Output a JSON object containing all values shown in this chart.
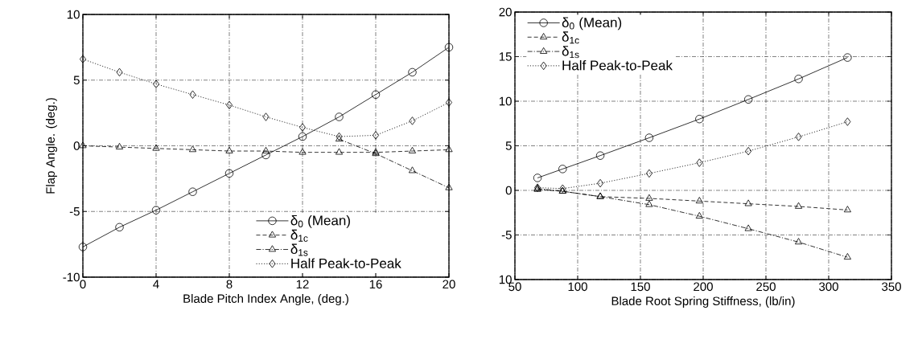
{
  "chart_data": [
    {
      "type": "line",
      "xlabel": "Blade Pitch Index Angle, (deg.)",
      "ylabel": "Flap Angle. (deg.)",
      "x": [
        0,
        2,
        4,
        6,
        8,
        10,
        12,
        14,
        16,
        18,
        20
      ],
      "xlim": [
        0,
        20
      ],
      "xticks": [
        0,
        4,
        8,
        12,
        16,
        20
      ],
      "ylim": [
        -10,
        10
      ],
      "yticks": [
        -10,
        -5,
        0,
        5,
        10
      ],
      "grid": true,
      "legend": "bottom right",
      "series": [
        {
          "name": "δ$_{0}$ (Mean)",
          "color": "#000000",
          "marker": "circle",
          "line_style": "solid",
          "values": [
            -7.7,
            -6.2,
            -4.9,
            -3.5,
            -2.1,
            -0.7,
            0.7,
            2.2,
            3.9,
            5.6,
            7.5
          ]
        },
        {
          "name": "δ$_{1c}$",
          "color": "#000000",
          "marker": "triangle",
          "line_style": "dashed",
          "values": [
            0,
            -0.1,
            -0.2,
            -0.3,
            -0.4,
            -0.4,
            -0.5,
            -0.5,
            -0.5,
            -0.4,
            -0.3
          ]
        },
        {
          "name": "δ$_{1s}$",
          "color": "#000000",
          "marker": "triangle",
          "line_style": "dashdot",
          "values": [
            null,
            null,
            null,
            null,
            null,
            null,
            null,
            0.5,
            -0.6,
            -1.9,
            -3.2
          ]
        },
        {
          "name": "Half Peak-to-Peak",
          "color": "#000000",
          "marker": "diamond",
          "line_style": "dotted",
          "values": [
            6.6,
            5.6,
            4.7,
            3.9,
            3.1,
            2.2,
            1.4,
            0.7,
            0.8,
            1.9,
            3.3
          ]
        }
      ]
    },
    {
      "type": "line",
      "xlabel": "Blade Root Spring Stiffness, (lb/in)",
      "x": [
        68,
        88,
        118,
        157,
        197,
        236,
        276,
        315
      ],
      "xlim": [
        50,
        350
      ],
      "xticks": [
        50,
        100,
        150,
        200,
        250,
        300,
        350
      ],
      "ylim": [
        -10,
        20
      ],
      "yticks": [
        {
          "value": -10,
          "label": "10"
        },
        -5,
        0,
        5,
        10,
        15,
        20
      ],
      "grid": true,
      "legend": "top left",
      "series": [
        {
          "name": "δ$_{0}$ (Mean)",
          "color": "#000000",
          "marker": "circle",
          "line_style": "solid",
          "values": [
            1.4,
            2.4,
            3.9,
            5.9,
            8.0,
            10.2,
            12.5,
            14.9
          ]
        },
        {
          "name": "δ$_{1c}$",
          "color": "#000000",
          "marker": "triangle",
          "line_style": "dashed",
          "values": [
            0.1,
            -0.1,
            -0.7,
            -0.9,
            -1.2,
            -1.5,
            -1.8,
            -2.2
          ]
        },
        {
          "name": "δ$_{1s}$",
          "color": "#000000",
          "marker": "triangle",
          "line_style": "dashdot",
          "values": [
            0.2,
            -0.1,
            -0.7,
            -1.6,
            -2.9,
            -4.3,
            -5.8,
            -7.5
          ]
        },
        {
          "name": "Half Peak-to-Peak",
          "color": "#000000",
          "marker": "diamond",
          "line_style": "dotted",
          "values": [
            0.3,
            0.2,
            0.8,
            1.9,
            3.1,
            4.4,
            6.0,
            7.7
          ]
        }
      ]
    }
  ]
}
